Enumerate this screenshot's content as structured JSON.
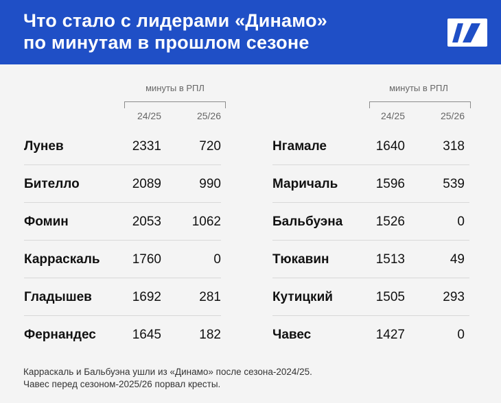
{
  "header": {
    "title_line1": "Что стало с лидерами «Динамо»",
    "title_line2": "по минутам в прошлом сезоне",
    "background": "#1f4fc6"
  },
  "chart_data": {
    "type": "table",
    "caption": "минуты в РПЛ",
    "columns": [
      "24/25",
      "25/26"
    ],
    "tables": [
      {
        "rows": [
          {
            "name": "Лунев",
            "v2425": 2331,
            "v2526": 720
          },
          {
            "name": "Бителло",
            "v2425": 2089,
            "v2526": 990
          },
          {
            "name": "Фомин",
            "v2425": 2053,
            "v2526": 1062
          },
          {
            "name": "Карраскаль",
            "v2425": 1760,
            "v2526": 0
          },
          {
            "name": "Гладышев",
            "v2425": 1692,
            "v2526": 281
          },
          {
            "name": "Фернандес",
            "v2425": 1645,
            "v2526": 182
          }
        ]
      },
      {
        "rows": [
          {
            "name": "Нгамале",
            "v2425": 1640,
            "v2526": 318
          },
          {
            "name": "Маричаль",
            "v2425": 1596,
            "v2526": 539
          },
          {
            "name": "Бальбуэна",
            "v2425": 1526,
            "v2526": 0
          },
          {
            "name": "Тюкавин",
            "v2425": 1513,
            "v2526": 49
          },
          {
            "name": "Кутицкий",
            "v2425": 1505,
            "v2526": 293
          },
          {
            "name": "Чавес",
            "v2425": 1427,
            "v2526": 0
          }
        ]
      }
    ]
  },
  "footnote": {
    "line1": "Карраскаль и Бальбуэна ушли из «Динамо» после сезона-2024/25.",
    "line2": "Чавес перед сезоном-2025/26 порвал кресты."
  },
  "logo": {
    "icon": "logo-icon"
  }
}
